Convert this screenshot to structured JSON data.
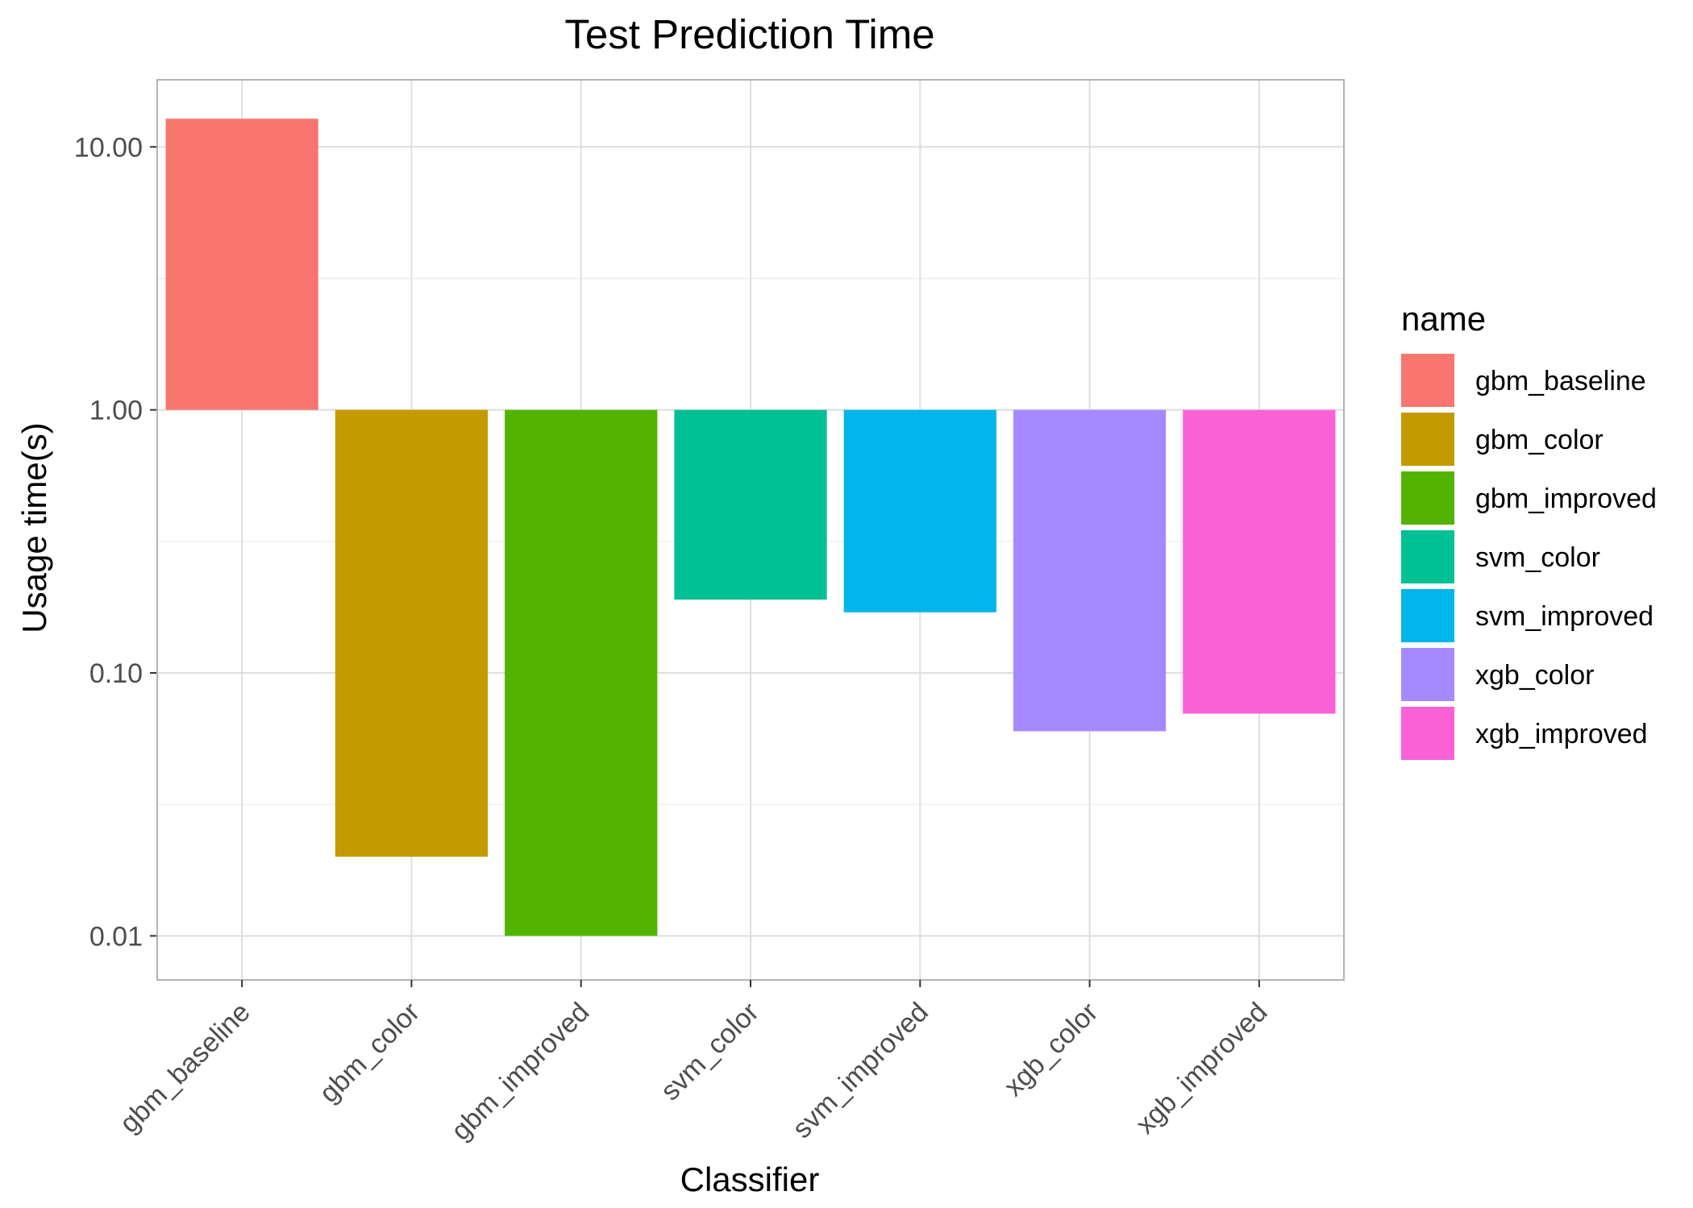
{
  "chart_data": {
    "type": "bar",
    "title": "Test Prediction Time",
    "xlabel": "Classifier",
    "ylabel": "Usage time(s)",
    "y_scale": "log10",
    "baseline": 1.0,
    "ylim": [
      0.0068,
      18
    ],
    "categories": [
      "gbm_baseline",
      "gbm_color",
      "gbm_improved",
      "svm_color",
      "svm_improved",
      "xgb_color",
      "xgb_improved"
    ],
    "values": [
      12.8,
      0.02,
      0.01,
      0.19,
      0.17,
      0.06,
      0.07
    ],
    "colors": [
      "#F8766D",
      "#C49A00",
      "#53B400",
      "#00C094",
      "#00B6EB",
      "#A58AFF",
      "#FB61D7"
    ],
    "y_ticks": [
      0.01,
      0.1,
      1,
      10
    ],
    "y_tick_labels": [
      "0.01",
      "0.10",
      "1.00",
      "10.00"
    ],
    "grid": true,
    "legend": {
      "title": "name",
      "position": "right",
      "items": [
        "gbm_baseline",
        "gbm_color",
        "gbm_improved",
        "svm_color",
        "svm_improved",
        "xgb_color",
        "xgb_improved"
      ]
    }
  }
}
